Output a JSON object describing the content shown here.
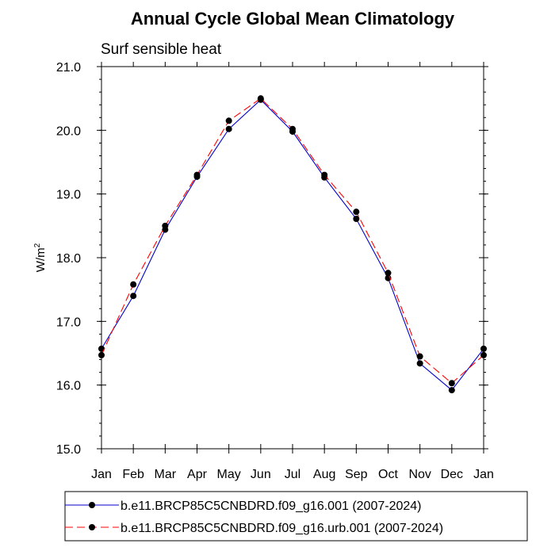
{
  "chart_data": {
    "type": "line",
    "title": "Annual Cycle Global Mean Climatology",
    "subtitle": "Surf sensible heat",
    "ylabel": "W/m",
    "ylabel_superscript": "2",
    "xlabel": "",
    "categories": [
      "Jan",
      "Feb",
      "Mar",
      "Apr",
      "May",
      "Jun",
      "Jul",
      "Aug",
      "Sep",
      "Oct",
      "Nov",
      "Dec",
      "Jan"
    ],
    "ylim": [
      15.0,
      21.0
    ],
    "yticks": [
      "15.0",
      "16.0",
      "17.0",
      "18.0",
      "19.0",
      "20.0",
      "21.0"
    ],
    "grid": false,
    "legend_position": "bottom",
    "series": [
      {
        "name": "b.e11.BRCP85C5CNBDRD.f09_g16.001 (2007-2024)",
        "color": "#0000cc",
        "line_style": "solid",
        "marker": "filled-circle",
        "values": [
          16.57,
          17.4,
          18.44,
          19.27,
          20.02,
          20.48,
          19.98,
          19.26,
          18.61,
          17.68,
          16.34,
          15.92,
          16.57
        ]
      },
      {
        "name": "b.e11.BRCP85C5CNBDRD.f09_g16.urb.001 (2007-2024)",
        "color": "#ff0000",
        "line_style": "dashed",
        "marker": "filled-circle",
        "values": [
          16.47,
          17.58,
          18.5,
          19.3,
          20.15,
          20.5,
          20.02,
          19.3,
          18.72,
          17.76,
          16.45,
          16.03,
          16.47
        ]
      }
    ]
  }
}
